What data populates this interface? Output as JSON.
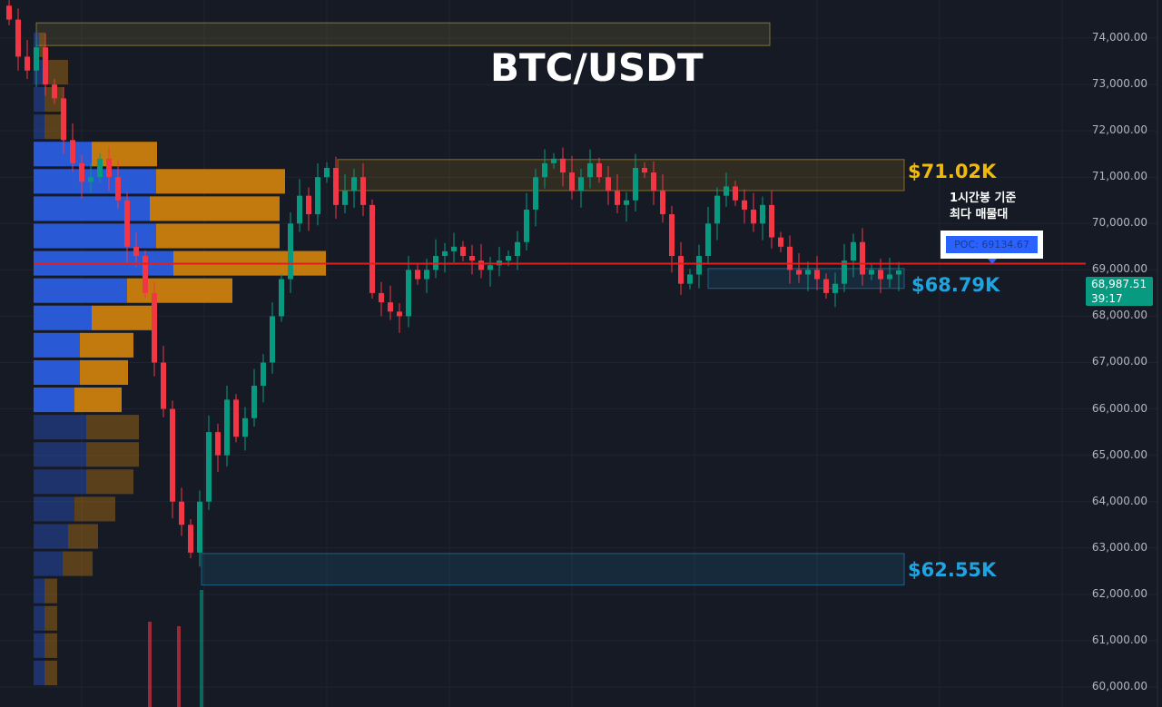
{
  "chart_data": {
    "type": "candlestick",
    "title": "BTC/USDT",
    "ylim": [
      59700,
      74800
    ],
    "y_ticks": [
      "74,000.00",
      "73,000.00",
      "72,000.00",
      "71,000.00",
      "70,000.00",
      "69,000.00",
      "68,000.00",
      "67,000.00",
      "66,000.00",
      "65,000.00",
      "64,000.00",
      "63,000.00",
      "62,000.00",
      "61,000.00",
      "60,000.00"
    ],
    "y_tick_values": [
      74000,
      73000,
      72000,
      71000,
      70000,
      69000,
      68000,
      67000,
      66000,
      65000,
      64000,
      63000,
      62000,
      61000,
      60000
    ],
    "grid": true,
    "closes": [
      74400,
      73600,
      73300,
      73800,
      73000,
      72700,
      71800,
      71300,
      70900,
      71000,
      71400,
      71000,
      70500,
      69500,
      69300,
      68500,
      67000,
      66000,
      64000,
      63500,
      62900,
      64000,
      65500,
      65000,
      66200,
      65400,
      65800,
      66500,
      67000,
      68000,
      68800,
      70000,
      70600,
      70200,
      71000,
      71200,
      70400,
      70700,
      71000,
      70400,
      68500,
      68300,
      68100,
      68000,
      69000,
      68800,
      69000,
      69300,
      69400,
      69500,
      69300,
      69200,
      69000,
      69100,
      69200,
      69300,
      69600,
      70300,
      71000,
      71300,
      71400,
      71100,
      70700,
      71000,
      71300,
      71000,
      70700,
      70400,
      70500,
      71200,
      71100,
      70700,
      70200,
      69300,
      68700,
      68900,
      69300,
      70000,
      70600,
      70800,
      70500,
      70300,
      70000,
      70400,
      69700,
      69500,
      69000,
      68900,
      69000,
      68800,
      68500,
      68700,
      69200,
      69600,
      68900,
      69000,
      68800,
      68900,
      68987.51
    ],
    "last_price": "68,987.51",
    "countdown": "39:17",
    "poc_price": 69134.67,
    "volume_profile": {
      "price_range": [
        60000,
        74140
      ],
      "rows_from_top": [
        {
          "buy": 6,
          "sell": 7
        },
        {
          "buy": 12,
          "sell": 26
        },
        {
          "buy": 12,
          "sell": 21
        },
        {
          "buy": 12,
          "sell": 21
        },
        {
          "buy": 64,
          "sell": 72
        },
        {
          "buy": 135,
          "sell": 142
        },
        {
          "buy": 128,
          "sell": 143
        },
        {
          "buy": 135,
          "sell": 136
        },
        {
          "buy": 154,
          "sell": 168
        },
        {
          "buy": 103,
          "sell": 116
        },
        {
          "buy": 64,
          "sell": 67
        },
        {
          "buy": 51,
          "sell": 59
        },
        {
          "buy": 51,
          "sell": 53
        },
        {
          "buy": 45,
          "sell": 52
        },
        {
          "buy": 58,
          "sell": 58
        },
        {
          "buy": 58,
          "sell": 58
        },
        {
          "buy": 58,
          "sell": 52
        },
        {
          "buy": 45,
          "sell": 45
        },
        {
          "buy": 38,
          "sell": 33
        },
        {
          "buy": 32,
          "sell": 33
        },
        {
          "buy": 12,
          "sell": 14
        },
        {
          "buy": 12,
          "sell": 14
        },
        {
          "buy": 12,
          "sell": 14
        },
        {
          "buy": 12,
          "sell": 14
        }
      ],
      "value_area_rows": [
        4,
        13
      ]
    },
    "zones": [
      {
        "label": "",
        "top": 74330,
        "bottom": 73840,
        "color": "#e0c341"
      },
      {
        "label": "$71.02K",
        "top": 71380,
        "bottom": 70710,
        "color": "#f0b90b"
      },
      {
        "label": "$68.79K",
        "top": 69030,
        "bottom": 68600,
        "color": "#1ea4e0"
      },
      {
        "label": "$62.55K",
        "top": 62880,
        "bottom": 62200,
        "color": "#1ea4e0"
      }
    ],
    "colors": {
      "up": "#089981",
      "down": "#f23645",
      "buy": "#2a59d6",
      "sell": "#c27a0e",
      "poc_line": "#e01e1e",
      "background": "#161a25"
    }
  },
  "annotation": {
    "line1": "1시간봉 기준",
    "line2": "최다 매물대",
    "poc_label": "POC: 69134.67"
  }
}
